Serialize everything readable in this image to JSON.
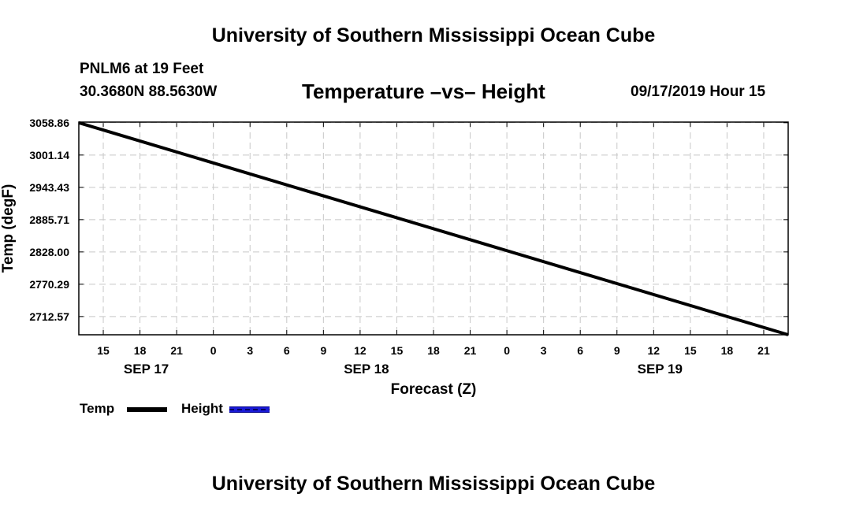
{
  "header": {
    "title": "University of Southern Mississippi Ocean Cube",
    "station": "PNLM6 at 19 Feet",
    "coordinates": "30.3680N 88.5630W",
    "plot_title": "Temperature –vs– Height",
    "date": "09/17/2019 Hour 15"
  },
  "footer": {
    "title": "University of Southern Mississippi Ocean Cube"
  },
  "legend": {
    "temp_label": "Temp",
    "height_label": "Height"
  },
  "colors": {
    "temp_line": "#000000",
    "height_line": "#1a1ad8",
    "grid": "#c8c8c8"
  },
  "chart_data": {
    "type": "line",
    "title": "Temperature –vs– Height",
    "xlabel": "Forecast (Z)",
    "ylabel": "Temp (degF)",
    "xlim": [
      13,
      71
    ],
    "ylim": [
      2680,
      3060
    ],
    "y_ticks": [
      3058.86,
      3001.14,
      2943.43,
      2885.71,
      2828.0,
      2770.29,
      2712.57
    ],
    "y_tick_labels": [
      "3058.86",
      "3001.14",
      "2943.43",
      "2885.71",
      "2828.00",
      "2770.29",
      "2712.57"
    ],
    "x_ticks": [
      15,
      18,
      21,
      24,
      27,
      30,
      33,
      36,
      39,
      42,
      45,
      48,
      51,
      54,
      57,
      60,
      63,
      66,
      69
    ],
    "x_tick_labels": [
      "15",
      "18",
      "21",
      "0",
      "3",
      "6",
      "9",
      "12",
      "15",
      "18",
      "21",
      "0",
      "3",
      "6",
      "9",
      "12",
      "15",
      "18",
      "21"
    ],
    "date_labels": [
      {
        "hour": 18,
        "label": "SEP 17"
      },
      {
        "hour": 36,
        "label": "SEP 18"
      },
      {
        "hour": 60,
        "label": "SEP 19"
      }
    ],
    "grid": true,
    "series": [
      {
        "name": "Temp",
        "x": [
          13,
          71
        ],
        "y": [
          3058.86,
          2680.0
        ]
      }
    ]
  }
}
